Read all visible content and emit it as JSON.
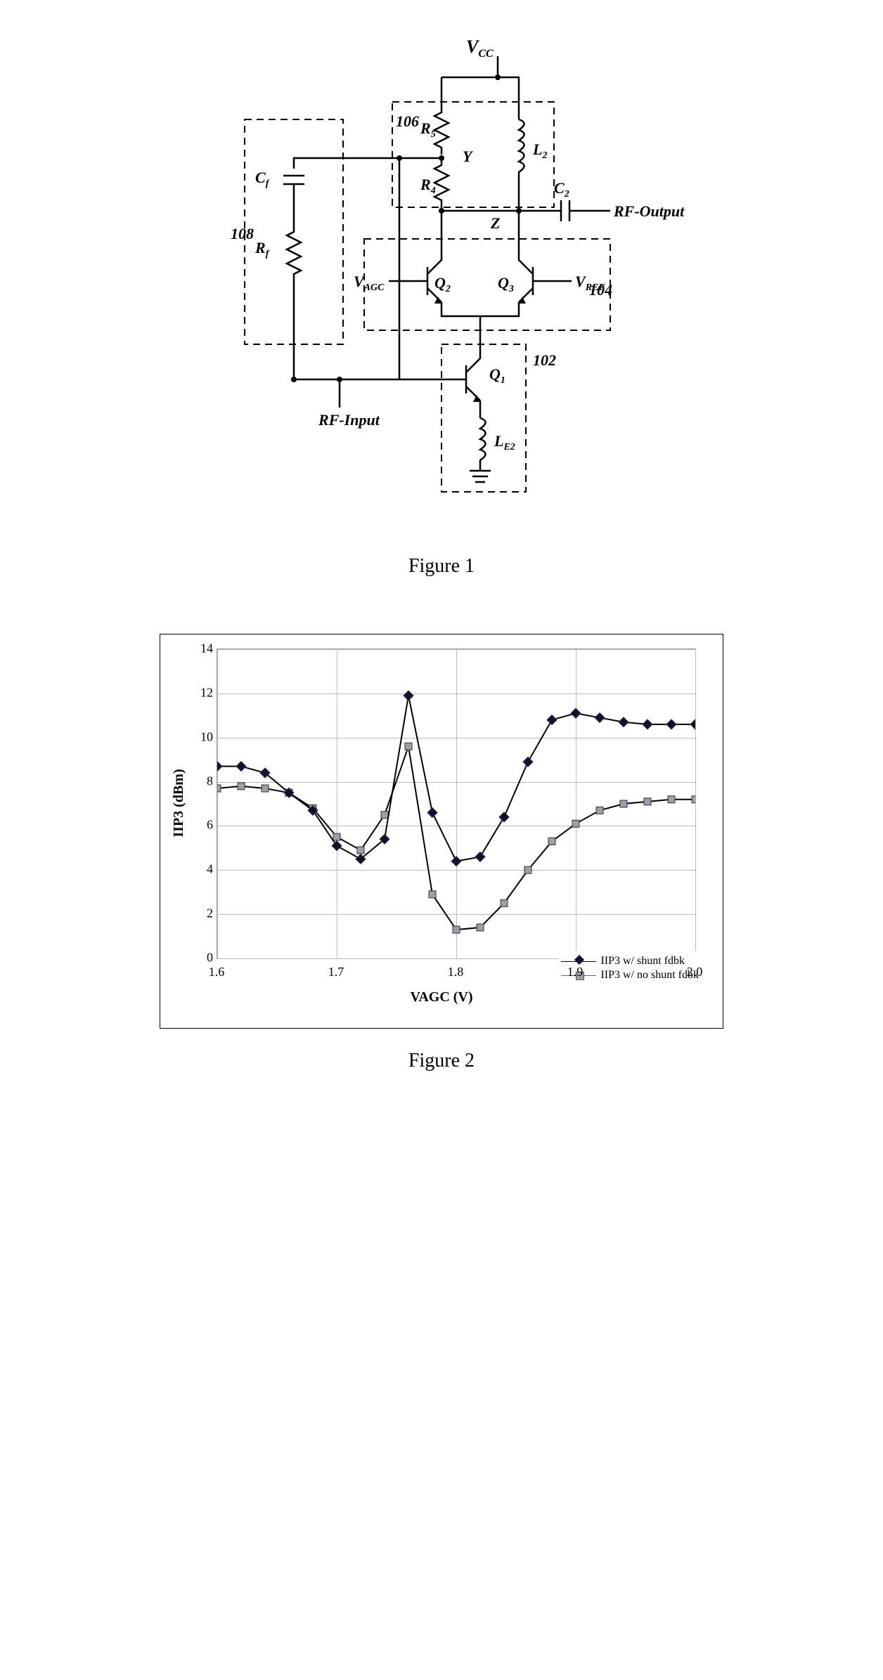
{
  "figure1": {
    "caption": "Figure 1",
    "vcc": "V",
    "vcc_sub": "CC",
    "r5": "R",
    "r5_sub": "5",
    "r4": "R",
    "r4_sub": "4",
    "l2": "L",
    "l2_sub": "2",
    "c2": "C",
    "c2_sub": "2",
    "cf": "C",
    "cf_sub": "f",
    "rf": "R",
    "rf_sub": "f",
    "q1": "Q",
    "q1_sub": "1",
    "q2": "Q",
    "q2_sub": "2",
    "q3": "Q",
    "q3_sub": "3",
    "le2": "L",
    "le2_sub": "E2",
    "vagc": "V",
    "vagc_sub": "AGC",
    "vref": "V",
    "vref_sub": "REF",
    "y": "Y",
    "z": "Z",
    "rf_in": "RF-Input",
    "rf_out": "RF-Output",
    "box102": "102",
    "box104": "104",
    "box106": "106",
    "box108": "108"
  },
  "figure2": {
    "caption": "Figure 2",
    "ylabel": "IIP3 (dBm)",
    "xlabel": "VAGC (V)",
    "ylim": [
      0,
      14
    ],
    "ytick_step": 2,
    "xlim": [
      1.6,
      2.0
    ],
    "xtick_step": 0.1,
    "grid_color": "#bbbbbb",
    "legend1": "IIP3 w/ shunt fdbk",
    "legend2": "IIP3 w/ no shunt fdbk",
    "series1": {
      "color": "#000000",
      "marker": "diamond",
      "marker_fill": "#101030",
      "x": [
        1.6,
        1.62,
        1.64,
        1.66,
        1.68,
        1.7,
        1.72,
        1.74,
        1.76,
        1.78,
        1.8,
        1.82,
        1.84,
        1.86,
        1.88,
        1.9,
        1.92,
        1.94,
        1.96,
        1.98,
        2.0
      ],
      "y": [
        8.7,
        8.7,
        8.4,
        7.5,
        6.7,
        5.1,
        4.5,
        5.4,
        11.9,
        6.6,
        4.4,
        4.6,
        6.4,
        8.9,
        10.8,
        11.1,
        10.9,
        10.7,
        10.6,
        10.6,
        10.6
      ]
    },
    "series2": {
      "color": "#000000",
      "marker": "square",
      "marker_fill": "#9aa0a6",
      "x": [
        1.6,
        1.62,
        1.64,
        1.66,
        1.68,
        1.7,
        1.72,
        1.74,
        1.76,
        1.78,
        1.8,
        1.82,
        1.84,
        1.86,
        1.88,
        1.9,
        1.92,
        1.94,
        1.96,
        1.98,
        2.0
      ],
      "y": [
        7.7,
        7.8,
        7.7,
        7.5,
        6.8,
        5.5,
        4.9,
        6.5,
        9.6,
        2.9,
        1.3,
        1.4,
        2.5,
        4.0,
        5.3,
        6.1,
        6.7,
        7.0,
        7.1,
        7.2,
        7.2
      ]
    }
  }
}
